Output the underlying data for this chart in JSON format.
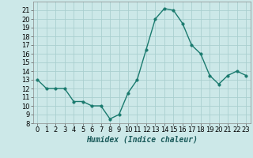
{
  "x": [
    0,
    1,
    2,
    3,
    4,
    5,
    6,
    7,
    8,
    9,
    10,
    11,
    12,
    13,
    14,
    15,
    16,
    17,
    18,
    19,
    20,
    21,
    22,
    23
  ],
  "y": [
    13.0,
    12.0,
    12.0,
    12.0,
    10.5,
    10.5,
    10.0,
    10.0,
    8.5,
    9.0,
    11.5,
    13.0,
    16.5,
    20.0,
    21.2,
    21.0,
    19.5,
    17.0,
    16.0,
    13.5,
    12.5,
    13.5,
    14.0,
    13.5
  ],
  "line_color": "#1a7a6e",
  "marker_color": "#1a7a6e",
  "bg_color": "#cce8e8",
  "grid_color": "#aacfcf",
  "xlabel": "Humidex (Indice chaleur)",
  "xlim": [
    -0.5,
    23.5
  ],
  "ylim": [
    8,
    22
  ],
  "yticks": [
    8,
    9,
    10,
    11,
    12,
    13,
    14,
    15,
    16,
    17,
    18,
    19,
    20,
    21
  ],
  "xticks": [
    0,
    1,
    2,
    3,
    4,
    5,
    6,
    7,
    8,
    9,
    10,
    11,
    12,
    13,
    14,
    15,
    16,
    17,
    18,
    19,
    20,
    21,
    22,
    23
  ],
  "tick_fontsize": 6,
  "label_fontsize": 7,
  "linewidth": 1.0,
  "markersize": 2.5
}
